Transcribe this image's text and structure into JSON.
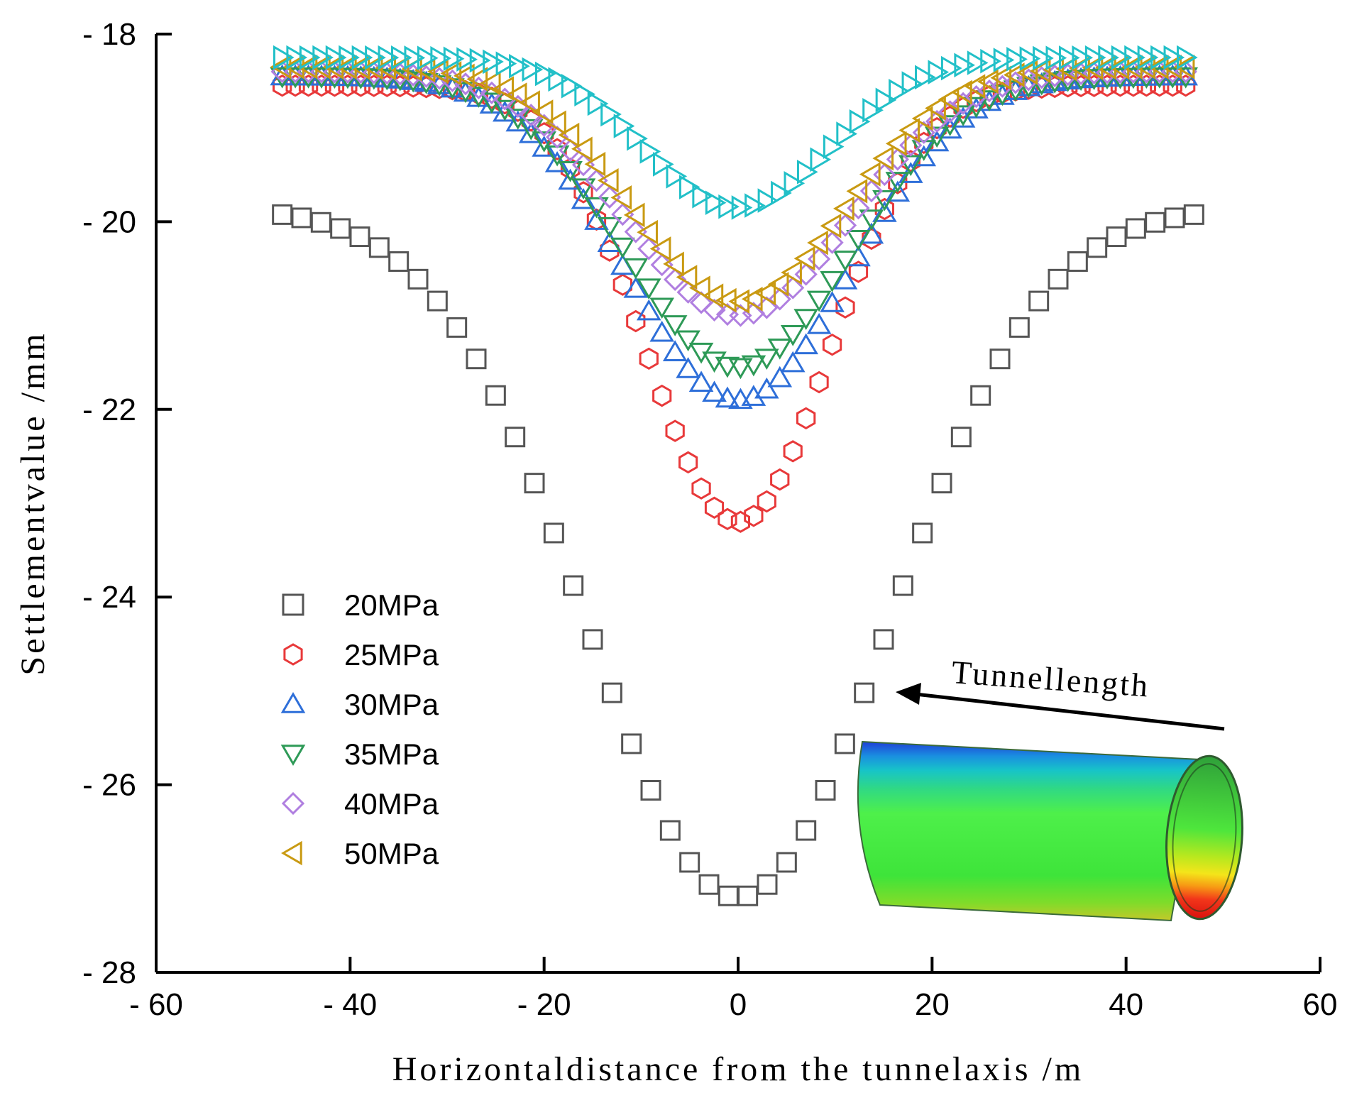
{
  "chart_data": {
    "type": "scatter",
    "title": "",
    "xlabel": "Horizontaldistance from the tunnelaxis /m",
    "ylabel": "Settlementvalue /mm",
    "xlim": [
      -60,
      60
    ],
    "ylim": [
      -28,
      -18
    ],
    "xticks": [
      -60,
      -40,
      -20,
      0,
      20,
      40,
      60
    ],
    "yticks": [
      -18,
      -20,
      -22,
      -24,
      -26,
      -28
    ],
    "xtick_labels": [
      "- 60",
      "- 40",
      "- 20",
      "0",
      "20",
      "40",
      "60"
    ],
    "ytick_labels": [
      "- 18",
      "- 20",
      "- 22",
      "- 24",
      "- 26",
      "- 28"
    ],
    "legend_position": "center-left",
    "annotation": "Tunnellength",
    "series": [
      {
        "name": "20MPa",
        "marker": "square",
        "color": "#555555",
        "baseline": -19.85,
        "min": -27.2,
        "sigma": 15.5
      },
      {
        "name": "25MPa",
        "marker": "hexagon",
        "color": "#e8393a",
        "baseline": -18.55,
        "min": -23.2,
        "sigma": 9.5
      },
      {
        "name": "30MPa",
        "marker": "triangle-up",
        "color": "#2e6fd9",
        "baseline": -18.45,
        "min": -21.9,
        "sigma": 11.5
      },
      {
        "name": "35MPa",
        "marker": "triangle-down",
        "color": "#2e9a57",
        "baseline": -18.45,
        "min": -21.55,
        "sigma": 11.5
      },
      {
        "name": "40MPa",
        "marker": "diamond",
        "color": "#b07fe0",
        "baseline": -18.4,
        "min": -21.0,
        "sigma": 11.5
      },
      {
        "name": "50MPa",
        "marker": "triangle-left",
        "color": "#c99a12",
        "baseline": -18.35,
        "min": -20.85,
        "sigma": 11.0
      },
      {
        "name": "",
        "marker": "triangle-right",
        "color": "#22c0c8",
        "baseline": -18.25,
        "min": -19.85,
        "sigma": 9.5
      }
    ]
  }
}
